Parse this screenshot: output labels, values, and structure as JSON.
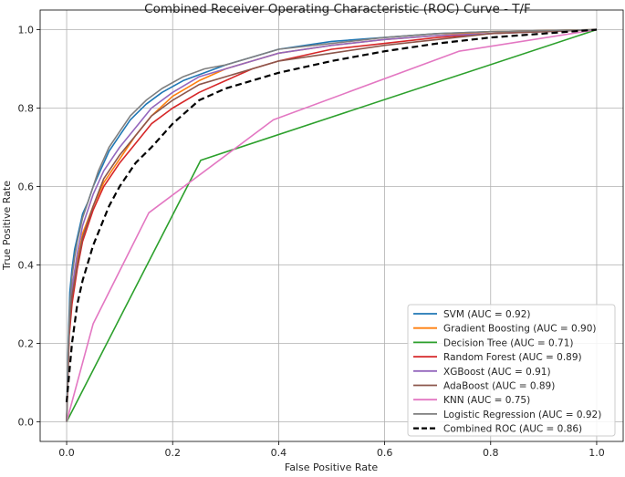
{
  "chart_data": {
    "type": "line",
    "title": "Combined Receiver Operating Characteristic (ROC) Curve - T/F",
    "xlabel": "False Positive Rate",
    "ylabel": "True Positive Rate",
    "xlim": [
      -0.05,
      1.05
    ],
    "ylim": [
      -0.05,
      1.05
    ],
    "xticks": [
      "0.0",
      "0.2",
      "0.4",
      "0.6",
      "0.8",
      "1.0"
    ],
    "yticks": [
      "0.0",
      "0.2",
      "0.4",
      "0.6",
      "0.8",
      "1.0"
    ],
    "grid": true,
    "legend_position": "lower-right",
    "series": [
      {
        "name": "SVM (AUC = 0.92)",
        "color": "#1f77b4",
        "dashed": false,
        "points": [
          [
            0,
            0
          ],
          [
            0.003,
            0.2
          ],
          [
            0.006,
            0.33
          ],
          [
            0.01,
            0.39
          ],
          [
            0.015,
            0.44
          ],
          [
            0.02,
            0.47
          ],
          [
            0.03,
            0.53
          ],
          [
            0.04,
            0.56
          ],
          [
            0.05,
            0.6
          ],
          [
            0.06,
            0.63
          ],
          [
            0.07,
            0.66
          ],
          [
            0.08,
            0.69
          ],
          [
            0.1,
            0.73
          ],
          [
            0.12,
            0.77
          ],
          [
            0.15,
            0.81
          ],
          [
            0.18,
            0.84
          ],
          [
            0.22,
            0.87
          ],
          [
            0.26,
            0.89
          ],
          [
            0.3,
            0.91
          ],
          [
            0.35,
            0.93
          ],
          [
            0.4,
            0.95
          ],
          [
            0.5,
            0.97
          ],
          [
            0.6,
            0.98
          ],
          [
            0.7,
            0.99
          ],
          [
            0.8,
            0.995
          ],
          [
            1,
            1
          ]
        ]
      },
      {
        "name": "Gradient Boosting (AUC = 0.90)",
        "color": "#ff7f0e",
        "dashed": false,
        "points": [
          [
            0,
            0
          ],
          [
            0.005,
            0.25
          ],
          [
            0.01,
            0.33
          ],
          [
            0.02,
            0.41
          ],
          [
            0.03,
            0.48
          ],
          [
            0.05,
            0.55
          ],
          [
            0.07,
            0.61
          ],
          [
            0.1,
            0.67
          ],
          [
            0.13,
            0.73
          ],
          [
            0.16,
            0.78
          ],
          [
            0.2,
            0.83
          ],
          [
            0.25,
            0.87
          ],
          [
            0.3,
            0.9
          ],
          [
            0.35,
            0.92
          ],
          [
            0.4,
            0.94
          ],
          [
            0.5,
            0.96
          ],
          [
            0.6,
            0.975
          ],
          [
            0.7,
            0.985
          ],
          [
            0.8,
            0.995
          ],
          [
            1,
            1
          ]
        ]
      },
      {
        "name": "Decision Tree (AUC = 0.71)",
        "color": "#2ca02c",
        "dashed": false,
        "points": [
          [
            0,
            0
          ],
          [
            0.253,
            0.667
          ],
          [
            1,
            1
          ]
        ]
      },
      {
        "name": "Random Forest (AUC = 0.89)",
        "color": "#d62728",
        "dashed": false,
        "points": [
          [
            0,
            0
          ],
          [
            0.005,
            0.22
          ],
          [
            0.01,
            0.3
          ],
          [
            0.02,
            0.39
          ],
          [
            0.03,
            0.46
          ],
          [
            0.05,
            0.54
          ],
          [
            0.07,
            0.6
          ],
          [
            0.1,
            0.66
          ],
          [
            0.13,
            0.71
          ],
          [
            0.16,
            0.76
          ],
          [
            0.2,
            0.8
          ],
          [
            0.25,
            0.84
          ],
          [
            0.3,
            0.87
          ],
          [
            0.35,
            0.9
          ],
          [
            0.4,
            0.92
          ],
          [
            0.5,
            0.95
          ],
          [
            0.6,
            0.965
          ],
          [
            0.7,
            0.98
          ],
          [
            0.8,
            0.99
          ],
          [
            1,
            1
          ]
        ]
      },
      {
        "name": "XGBoost (AUC = 0.91)",
        "color": "#9467bd",
        "dashed": false,
        "points": [
          [
            0,
            0
          ],
          [
            0.005,
            0.26
          ],
          [
            0.01,
            0.34
          ],
          [
            0.02,
            0.43
          ],
          [
            0.03,
            0.5
          ],
          [
            0.05,
            0.58
          ],
          [
            0.07,
            0.64
          ],
          [
            0.1,
            0.7
          ],
          [
            0.13,
            0.75
          ],
          [
            0.16,
            0.8
          ],
          [
            0.2,
            0.84
          ],
          [
            0.25,
            0.88
          ],
          [
            0.3,
            0.9
          ],
          [
            0.35,
            0.92
          ],
          [
            0.4,
            0.94
          ],
          [
            0.5,
            0.96
          ],
          [
            0.6,
            0.975
          ],
          [
            0.7,
            0.985
          ],
          [
            0.8,
            0.99
          ],
          [
            1,
            1
          ]
        ]
      },
      {
        "name": "AdaBoost (AUC = 0.89)",
        "color": "#8c564b",
        "dashed": false,
        "points": [
          [
            0,
            0
          ],
          [
            0.005,
            0.24
          ],
          [
            0.01,
            0.32
          ],
          [
            0.02,
            0.4
          ],
          [
            0.03,
            0.47
          ],
          [
            0.05,
            0.55
          ],
          [
            0.07,
            0.62
          ],
          [
            0.1,
            0.68
          ],
          [
            0.13,
            0.73
          ],
          [
            0.16,
            0.78
          ],
          [
            0.2,
            0.82
          ],
          [
            0.25,
            0.86
          ],
          [
            0.3,
            0.88
          ],
          [
            0.35,
            0.9
          ],
          [
            0.4,
            0.92
          ],
          [
            0.5,
            0.94
          ],
          [
            0.6,
            0.96
          ],
          [
            0.7,
            0.975
          ],
          [
            0.8,
            0.99
          ],
          [
            1,
            1
          ]
        ]
      },
      {
        "name": "KNN (AUC = 0.75)",
        "color": "#e377c2",
        "dashed": false,
        "points": [
          [
            0,
            0
          ],
          [
            0.05,
            0.25
          ],
          [
            0.155,
            0.533
          ],
          [
            0.39,
            0.77
          ],
          [
            0.74,
            0.945
          ],
          [
            1,
            1
          ]
        ]
      },
      {
        "name": "Logistic Regression (AUC = 0.92)",
        "color": "#7f7f7f",
        "dashed": false,
        "points": [
          [
            0,
            0
          ],
          [
            0.003,
            0.19
          ],
          [
            0.006,
            0.3
          ],
          [
            0.01,
            0.37
          ],
          [
            0.015,
            0.42
          ],
          [
            0.02,
            0.46
          ],
          [
            0.03,
            0.52
          ],
          [
            0.04,
            0.56
          ],
          [
            0.05,
            0.6
          ],
          [
            0.06,
            0.64
          ],
          [
            0.07,
            0.67
          ],
          [
            0.08,
            0.7
          ],
          [
            0.1,
            0.74
          ],
          [
            0.12,
            0.78
          ],
          [
            0.15,
            0.82
          ],
          [
            0.18,
            0.85
          ],
          [
            0.22,
            0.88
          ],
          [
            0.26,
            0.9
          ],
          [
            0.3,
            0.91
          ],
          [
            0.35,
            0.93
          ],
          [
            0.4,
            0.95
          ],
          [
            0.5,
            0.965
          ],
          [
            0.6,
            0.98
          ],
          [
            0.7,
            0.99
          ],
          [
            0.8,
            0.995
          ],
          [
            1,
            1
          ]
        ]
      },
      {
        "name": "Combined ROC (AUC = 0.86)",
        "color": "#000000",
        "dashed": true,
        "points": [
          [
            0,
            0.05
          ],
          [
            0.01,
            0.2
          ],
          [
            0.02,
            0.3
          ],
          [
            0.03,
            0.36
          ],
          [
            0.05,
            0.45
          ],
          [
            0.08,
            0.55
          ],
          [
            0.1,
            0.6
          ],
          [
            0.13,
            0.66
          ],
          [
            0.16,
            0.7
          ],
          [
            0.2,
            0.76
          ],
          [
            0.25,
            0.82
          ],
          [
            0.3,
            0.85
          ],
          [
            0.35,
            0.87
          ],
          [
            0.4,
            0.89
          ],
          [
            0.5,
            0.92
          ],
          [
            0.6,
            0.945
          ],
          [
            0.7,
            0.965
          ],
          [
            0.8,
            0.98
          ],
          [
            0.9,
            0.99
          ],
          [
            1,
            1
          ]
        ]
      }
    ]
  }
}
